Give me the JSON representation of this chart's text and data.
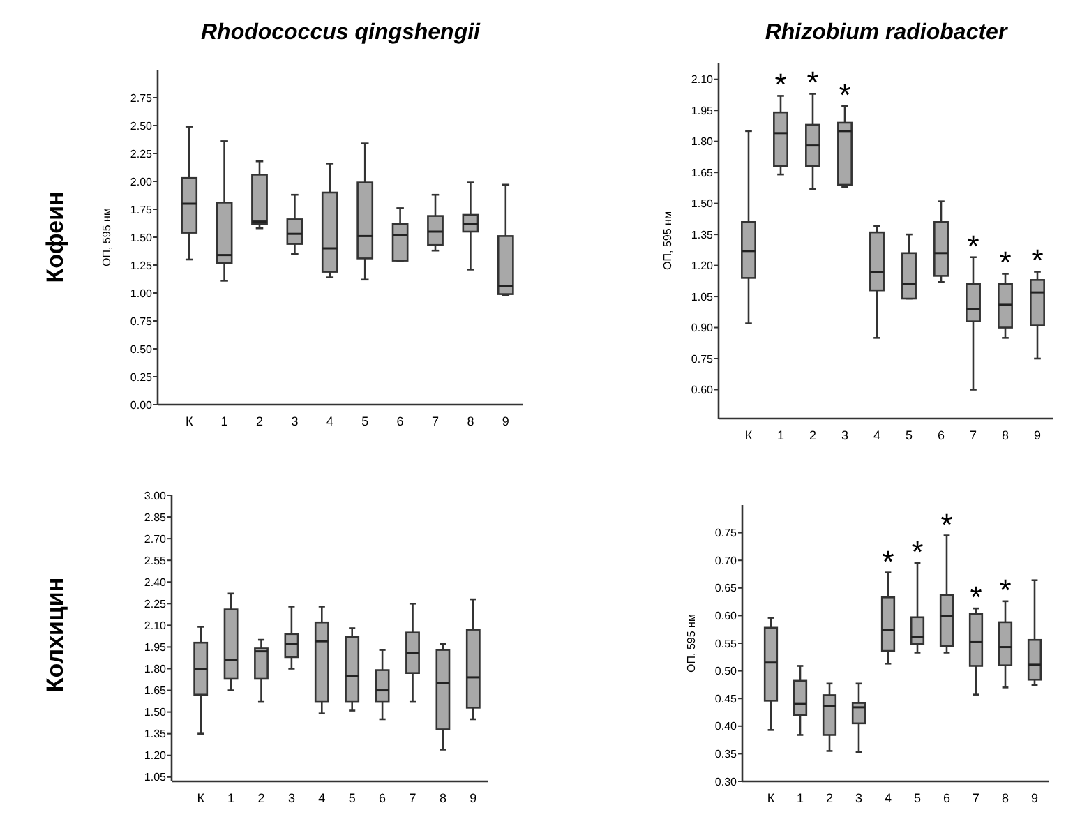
{
  "chart_data": [
    {
      "type": "box",
      "title": "Rhodococcus qingshengii",
      "ylabel": "ОП, 595 нм",
      "annotations": [
        "Кофеин"
      ],
      "categories": [
        "К",
        "1",
        "2",
        "3",
        "4",
        "5",
        "6",
        "7",
        "8",
        "9"
      ],
      "ylim": [
        0,
        3.0
      ],
      "yticks": [
        {
          "value": 0,
          "label": "0.00"
        },
        {
          "value": 0.25,
          "label": "0.25"
        },
        {
          "value": 0.5,
          "label": "0.50"
        },
        {
          "value": 0.75,
          "label": "0.75"
        },
        {
          "value": 1,
          "label": "1.00"
        },
        {
          "value": 1.25,
          "label": "1.25"
        },
        {
          "value": 1.5,
          "label": "1.50"
        },
        {
          "value": 1.75,
          "label": "1.75"
        },
        {
          "value": 2,
          "label": "2.00"
        },
        {
          "value": 2.25,
          "label": "2.25"
        },
        {
          "value": 2.5,
          "label": "2.50"
        },
        {
          "value": 2.75,
          "label": "2.75"
        }
      ],
      "grid": false,
      "color": "#a8a8a8",
      "boxes": [
        {
          "low": 1.3,
          "q1": 1.54,
          "median": 1.8,
          "q3": 2.03,
          "high": 2.49
        },
        {
          "low": 1.11,
          "q1": 1.27,
          "median": 1.34,
          "q3": 1.81,
          "high": 2.36
        },
        {
          "low": 1.58,
          "q1": 1.62,
          "median": 1.64,
          "q3": 2.06,
          "high": 2.18
        },
        {
          "low": 1.35,
          "q1": 1.44,
          "median": 1.53,
          "q3": 1.66,
          "high": 1.88
        },
        {
          "low": 1.14,
          "q1": 1.19,
          "median": 1.4,
          "q3": 1.9,
          "high": 2.16
        },
        {
          "low": 1.12,
          "q1": 1.31,
          "median": 1.51,
          "q3": 1.99,
          "high": 2.34
        },
        {
          "low": 1.29,
          "q1": 1.29,
          "median": 1.52,
          "q3": 1.62,
          "high": 1.76
        },
        {
          "low": 1.38,
          "q1": 1.43,
          "median": 1.55,
          "q3": 1.69,
          "high": 1.88
        },
        {
          "low": 1.21,
          "q1": 1.55,
          "median": 1.62,
          "q3": 1.7,
          "high": 1.99
        },
        {
          "low": 0.98,
          "q1": 0.99,
          "median": 1.06,
          "q3": 1.51,
          "high": 1.97
        }
      ]
    },
    {
      "type": "box",
      "title": "Rhizobium radiobacter",
      "ylabel": "ОП, 595 нм",
      "categories": [
        "К",
        "1",
        "2",
        "3",
        "4",
        "5",
        "6",
        "7",
        "8",
        "9"
      ],
      "ylim": [
        0.46,
        2.18
      ],
      "yticks": [
        {
          "value": 0.6,
          "label": "0.60"
        },
        {
          "value": 0.75,
          "label": "0.75"
        },
        {
          "value": 0.9,
          "label": "0.90"
        },
        {
          "value": 1.05,
          "label": "1.05"
        },
        {
          "value": 1.2,
          "label": "1.20"
        },
        {
          "value": 1.35,
          "label": "1.35"
        },
        {
          "value": 1.5,
          "label": "1.50"
        },
        {
          "value": 1.65,
          "label": "1.65"
        },
        {
          "value": 1.8,
          "label": "1.80"
        },
        {
          "value": 1.95,
          "label": "1.95"
        },
        {
          "value": 2.1,
          "label": "2.10"
        }
      ],
      "grid": false,
      "color": "#a8a8a8",
      "annotations": [
        {
          "text": "*",
          "x": "1",
          "y": 2.02
        },
        {
          "text": "*",
          "x": "2",
          "y": 2.03
        },
        {
          "text": "*",
          "x": "3",
          "y": 1.97
        },
        {
          "text": "*",
          "x": "7",
          "y": 1.24
        },
        {
          "text": "*",
          "x": "8",
          "y": 1.16
        },
        {
          "text": "*",
          "x": "9",
          "y": 1.17
        }
      ],
      "boxes": [
        {
          "low": 0.92,
          "q1": 1.14,
          "median": 1.27,
          "q3": 1.41,
          "high": 1.85
        },
        {
          "low": 1.64,
          "q1": 1.68,
          "median": 1.84,
          "q3": 1.94,
          "high": 2.02
        },
        {
          "low": 1.57,
          "q1": 1.68,
          "median": 1.78,
          "q3": 1.88,
          "high": 2.03
        },
        {
          "low": 1.58,
          "q1": 1.59,
          "median": 1.85,
          "q3": 1.89,
          "high": 1.97
        },
        {
          "low": 0.85,
          "q1": 1.08,
          "median": 1.17,
          "q3": 1.36,
          "high": 1.39
        },
        {
          "low": 1.04,
          "q1": 1.04,
          "median": 1.11,
          "q3": 1.26,
          "high": 1.35
        },
        {
          "low": 1.12,
          "q1": 1.15,
          "median": 1.26,
          "q3": 1.41,
          "high": 1.51
        },
        {
          "low": 0.6,
          "q1": 0.93,
          "median": 0.99,
          "q3": 1.11,
          "high": 1.24
        },
        {
          "low": 0.85,
          "q1": 0.9,
          "median": 1.01,
          "q3": 1.11,
          "high": 1.16
        },
        {
          "low": 0.75,
          "q1": 0.91,
          "median": 1.07,
          "q3": 1.13,
          "high": 1.17
        }
      ]
    },
    {
      "type": "box",
      "annotations": [
        "Колхицин"
      ],
      "categories": [
        "К",
        "1",
        "2",
        "3",
        "4",
        "5",
        "6",
        "7",
        "8",
        "9"
      ],
      "ylim": [
        1.02,
        3.0
      ],
      "yticks": [
        {
          "value": 1.05,
          "label": "1.05"
        },
        {
          "value": 1.2,
          "label": "1.20"
        },
        {
          "value": 1.35,
          "label": "1.35"
        },
        {
          "value": 1.5,
          "label": "1.50"
        },
        {
          "value": 1.65,
          "label": "1.65"
        },
        {
          "value": 1.8,
          "label": "1.80"
        },
        {
          "value": 1.95,
          "label": "1.95"
        },
        {
          "value": 2.1,
          "label": "2.10"
        },
        {
          "value": 2.25,
          "label": "2.25"
        },
        {
          "value": 2.4,
          "label": "2.40"
        },
        {
          "value": 2.55,
          "label": "2.55"
        },
        {
          "value": 2.7,
          "label": "2.70"
        },
        {
          "value": 2.85,
          "label": "2.85"
        },
        {
          "value": 3,
          "label": "3.00"
        }
      ],
      "grid": false,
      "color": "#a8a8a8",
      "boxes": [
        {
          "low": 1.35,
          "q1": 1.62,
          "median": 1.8,
          "q3": 1.98,
          "high": 2.09
        },
        {
          "low": 1.65,
          "q1": 1.73,
          "median": 1.86,
          "q3": 2.21,
          "high": 2.32
        },
        {
          "low": 1.57,
          "q1": 1.73,
          "median": 1.92,
          "q3": 1.94,
          "high": 2.0
        },
        {
          "low": 1.8,
          "q1": 1.88,
          "median": 1.97,
          "q3": 2.04,
          "high": 2.23
        },
        {
          "low": 1.49,
          "q1": 1.57,
          "median": 1.99,
          "q3": 2.12,
          "high": 2.23
        },
        {
          "low": 1.51,
          "q1": 1.57,
          "median": 1.75,
          "q3": 2.02,
          "high": 2.08
        },
        {
          "low": 1.45,
          "q1": 1.57,
          "median": 1.65,
          "q3": 1.79,
          "high": 1.93
        },
        {
          "low": 1.57,
          "q1": 1.77,
          "median": 1.91,
          "q3": 2.05,
          "high": 2.25
        },
        {
          "low": 1.24,
          "q1": 1.38,
          "median": 1.7,
          "q3": 1.93,
          "high": 1.97
        },
        {
          "low": 1.45,
          "q1": 1.53,
          "median": 1.74,
          "q3": 2.07,
          "high": 2.28
        }
      ]
    },
    {
      "type": "box",
      "ylabel": "ОП, 595 нм",
      "categories": [
        "К",
        "1",
        "2",
        "3",
        "4",
        "5",
        "6",
        "7",
        "8",
        "9"
      ],
      "ylim": [
        0.3,
        0.8
      ],
      "yticks": [
        {
          "value": 0.3,
          "label": "0.30"
        },
        {
          "value": 0.35,
          "label": "0.35"
        },
        {
          "value": 0.4,
          "label": "0.40"
        },
        {
          "value": 0.45,
          "label": "0.45"
        },
        {
          "value": 0.5,
          "label": "0.50"
        },
        {
          "value": 0.55,
          "label": "0.55"
        },
        {
          "value": 0.6,
          "label": "0.60"
        },
        {
          "value": 0.65,
          "label": "0.65"
        },
        {
          "value": 0.7,
          "label": "0.70"
        },
        {
          "value": 0.75,
          "label": "0.75"
        }
      ],
      "grid": false,
      "color": "#a8a8a8",
      "annotations": [
        {
          "text": "*",
          "x": "4",
          "y": 0.678
        },
        {
          "text": "*",
          "x": "5",
          "y": 0.695
        },
        {
          "text": "*",
          "x": "6",
          "y": 0.745
        },
        {
          "text": "*",
          "x": "7",
          "y": 0.613
        },
        {
          "text": "*",
          "x": "8",
          "y": 0.626
        }
      ],
      "boxes": [
        {
          "low": 0.393,
          "q1": 0.446,
          "median": 0.515,
          "q3": 0.578,
          "high": 0.596
        },
        {
          "low": 0.384,
          "q1": 0.42,
          "median": 0.44,
          "q3": 0.482,
          "high": 0.509
        },
        {
          "low": 0.355,
          "q1": 0.384,
          "median": 0.436,
          "q3": 0.456,
          "high": 0.477
        },
        {
          "low": 0.353,
          "q1": 0.405,
          "median": 0.434,
          "q3": 0.442,
          "high": 0.477
        },
        {
          "low": 0.513,
          "q1": 0.536,
          "median": 0.574,
          "q3": 0.633,
          "high": 0.678
        },
        {
          "low": 0.533,
          "q1": 0.549,
          "median": 0.561,
          "q3": 0.597,
          "high": 0.695
        },
        {
          "low": 0.533,
          "q1": 0.545,
          "median": 0.599,
          "q3": 0.637,
          "high": 0.745
        },
        {
          "low": 0.457,
          "q1": 0.509,
          "median": 0.552,
          "q3": 0.603,
          "high": 0.613
        },
        {
          "low": 0.47,
          "q1": 0.51,
          "median": 0.543,
          "q3": 0.588,
          "high": 0.626
        },
        {
          "low": 0.474,
          "q1": 0.484,
          "median": 0.511,
          "q3": 0.556,
          "high": 0.664
        }
      ]
    }
  ]
}
